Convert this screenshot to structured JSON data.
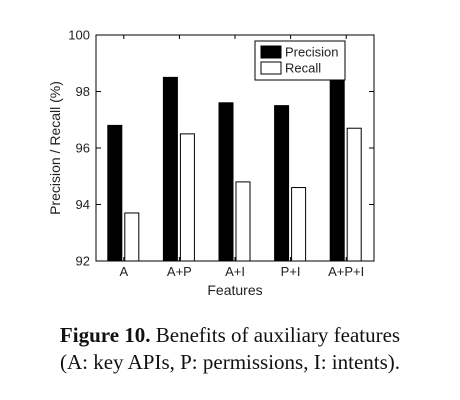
{
  "chart_data": {
    "type": "bar",
    "categories": [
      "A",
      "A+P",
      "A+I",
      "P+I",
      "A+P+I"
    ],
    "series": [
      {
        "name": "Precision",
        "values": [
          96.8,
          98.5,
          97.6,
          97.5,
          98.6
        ],
        "color": "#000000"
      },
      {
        "name": "Recall",
        "values": [
          93.7,
          96.5,
          94.8,
          94.6,
          96.7
        ],
        "color": "#ffffff"
      }
    ],
    "xlabel": "Features",
    "ylabel": "Precision / Recall (%)",
    "ylim": [
      92,
      100
    ],
    "yticks": [
      92,
      94,
      96,
      98,
      100
    ],
    "grid": false,
    "legend": "top-right"
  },
  "caption": {
    "label": "Figure 10.",
    "line1": "Benefits of auxiliary features",
    "line2": "(A: key APIs, P: permissions, I: intents)."
  }
}
